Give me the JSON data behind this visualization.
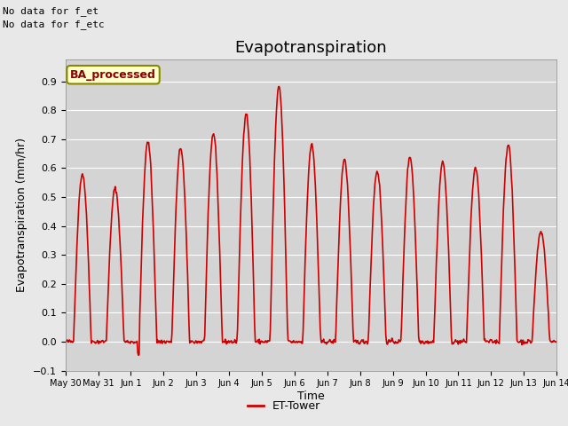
{
  "title": "Evapotranspiration",
  "xlabel": "Time",
  "ylabel": "Evapotranspiration (mm/hr)",
  "ylim": [
    -0.1,
    0.975
  ],
  "yticks": [
    -0.1,
    0.0,
    0.1,
    0.2,
    0.3,
    0.4,
    0.5,
    0.6,
    0.7,
    0.8,
    0.9
  ],
  "line_color": "#cc0000",
  "line_width": 1.2,
  "bg_color": "#e8e8e8",
  "plot_bg_color": "#d4d4d4",
  "annotation_text1": "No data for f_et",
  "annotation_text2": "No data for f_etc",
  "legend_label": "ET-Tower",
  "box_label": "BA_processed",
  "box_facecolor": "#ffffcc",
  "box_edgecolor": "#888800",
  "xtick_labels": [
    "May 30",
    "May 31",
    "Jun 1",
    "Jun 2",
    "Jun 3",
    "Jun 4",
    "Jun 5",
    "Jun 6",
    "Jun 7",
    "Jun 8",
    "Jun 9",
    "Jun 10",
    "Jun 11",
    "Jun 12",
    "Jun 13",
    "Jun 14"
  ],
  "title_fontsize": 13,
  "axis_fontsize": 9,
  "tick_fontsize": 8,
  "peaks": [
    0.58,
    0.53,
    0.69,
    0.67,
    0.72,
    0.79,
    0.88,
    0.68,
    0.63,
    0.59,
    0.64,
    0.62,
    0.6,
    0.68,
    0.38
  ],
  "n_per_day": 48,
  "n_days": 15
}
